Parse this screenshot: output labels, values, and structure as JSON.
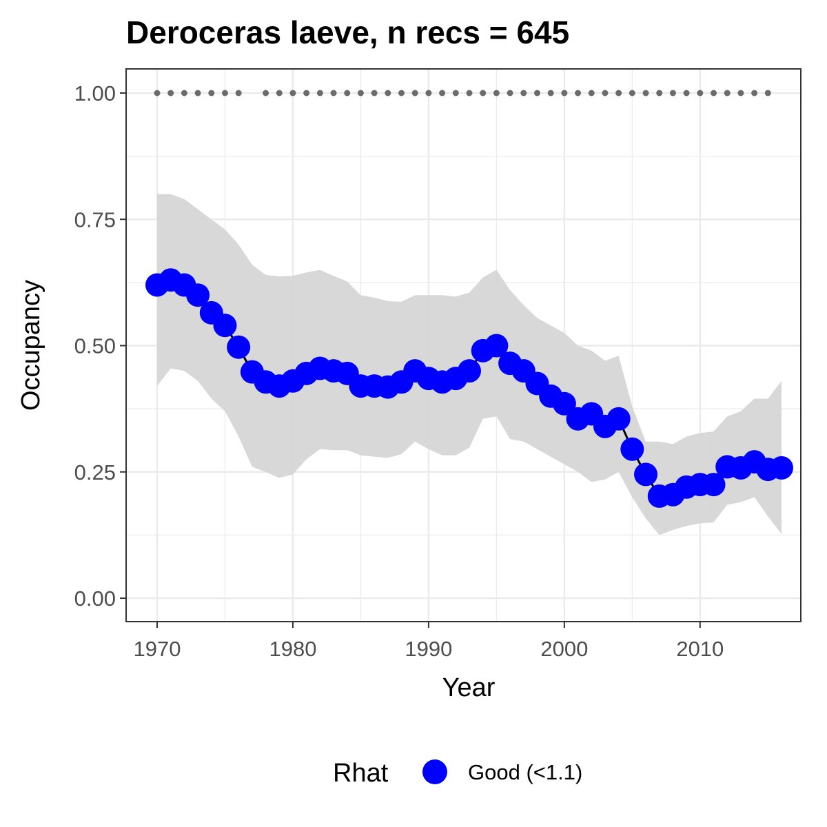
{
  "chart_data": {
    "type": "line",
    "title": "Deroceras laeve, n recs = 645",
    "xlabel": "Year",
    "ylabel": "Occupancy",
    "xlim": [
      1967.8,
      1918.2
    ],
    "ylim": [
      -0.05,
      1.05
    ],
    "xticks": [
      1970,
      1980,
      1990,
      2000,
      2010
    ],
    "xtick_labels": [
      "1970",
      "1980",
      "1990",
      "2000",
      "2010"
    ],
    "yticks": [
      0,
      0.25,
      0.5,
      0.75,
      1.0
    ],
    "ytick_labels": [
      "0.00",
      "0.25",
      "0.50",
      "0.75",
      "1.00"
    ],
    "grid": true,
    "legend": {
      "position": "bottom",
      "title": "Rhat",
      "entries": [
        {
          "label": "Good (<1.1)",
          "color": "#0000ff"
        }
      ]
    },
    "colors": {
      "series": "#0000ff",
      "ribbon": "#d6d6d6",
      "line": "#000000",
      "record_dots": "#6b6b6b"
    },
    "series": [
      {
        "name": "Good (<1.1)",
        "x": [
          1970,
          1971,
          1972,
          1973,
          1974,
          1975,
          1976,
          1977,
          1978,
          1979,
          1980,
          1981,
          1982,
          1983,
          1984,
          1985,
          1986,
          1987,
          1988,
          1989,
          1990,
          1991,
          1992,
          1993,
          1994,
          1995,
          1996,
          1997,
          1998,
          1999,
          2000,
          2001,
          2002,
          2003,
          2004,
          2005,
          2006,
          2007,
          2008,
          2009,
          2010,
          2011,
          2012,
          2013,
          2014,
          2015,
          2016
        ],
        "y": [
          0.62,
          0.63,
          0.62,
          0.6,
          0.565,
          0.54,
          0.497,
          0.448,
          0.428,
          0.42,
          0.43,
          0.445,
          0.455,
          0.45,
          0.445,
          0.42,
          0.42,
          0.418,
          0.428,
          0.45,
          0.435,
          0.428,
          0.435,
          0.45,
          0.49,
          0.5,
          0.465,
          0.45,
          0.425,
          0.4,
          0.385,
          0.355,
          0.365,
          0.34,
          0.355,
          0.295,
          0.245,
          0.202,
          0.205,
          0.22,
          0.225,
          0.225,
          0.26,
          0.258,
          0.27,
          0.255,
          0.258
        ],
        "lower": [
          0.42,
          0.455,
          0.45,
          0.43,
          0.395,
          0.37,
          0.32,
          0.26,
          0.25,
          0.238,
          0.245,
          0.275,
          0.295,
          0.293,
          0.293,
          0.283,
          0.28,
          0.278,
          0.285,
          0.31,
          0.295,
          0.283,
          0.283,
          0.298,
          0.355,
          0.36,
          0.315,
          0.31,
          0.295,
          0.28,
          0.265,
          0.25,
          0.23,
          0.235,
          0.25,
          0.2,
          0.158,
          0.125,
          0.135,
          0.143,
          0.148,
          0.15,
          0.185,
          0.19,
          0.2,
          0.162,
          0.127
        ],
        "upper": [
          0.8,
          0.8,
          0.79,
          0.77,
          0.75,
          0.73,
          0.7,
          0.66,
          0.64,
          0.637,
          0.638,
          0.645,
          0.65,
          0.638,
          0.627,
          0.6,
          0.595,
          0.588,
          0.587,
          0.6,
          0.6,
          0.6,
          0.597,
          0.605,
          0.635,
          0.65,
          0.61,
          0.58,
          0.555,
          0.54,
          0.525,
          0.5,
          0.49,
          0.47,
          0.48,
          0.38,
          0.31,
          0.31,
          0.305,
          0.32,
          0.327,
          0.33,
          0.36,
          0.37,
          0.395,
          0.395,
          0.43
        ]
      }
    ],
    "records": {
      "value": 1.0,
      "x": [
        1970,
        1971,
        1972,
        1973,
        1974,
        1975,
        1976,
        1978,
        1979,
        1980,
        1981,
        1982,
        1983,
        1984,
        1985,
        1986,
        1987,
        1988,
        1989,
        1990,
        1991,
        1992,
        1993,
        1994,
        1995,
        1996,
        1997,
        1998,
        1999,
        2000,
        2001,
        2002,
        2003,
        2004,
        2005,
        2006,
        2007,
        2008,
        2009,
        2010,
        2011,
        2012,
        2013,
        2014,
        2015
      ]
    }
  }
}
